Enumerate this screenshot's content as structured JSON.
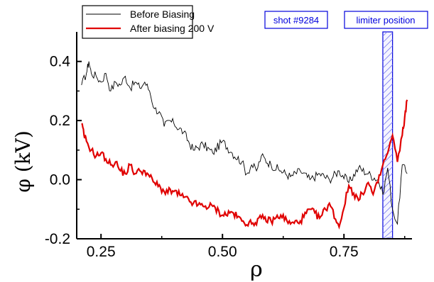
{
  "chart_data": {
    "type": "line",
    "xlabel": "ρ",
    "ylabel": "φ (kV)",
    "xlim": [
      0.2,
      0.89
    ],
    "ylim": [
      -0.2,
      0.5
    ],
    "xticks": [
      0.25,
      0.5,
      0.75
    ],
    "xtick_labels": [
      "0.25",
      "0.50",
      "0.75"
    ],
    "yticks": [
      -0.2,
      0.0,
      0.2,
      0.4
    ],
    "ytick_labels": [
      "-0.2",
      "0.0",
      "0.2",
      "0.4"
    ],
    "grid": false,
    "legend": {
      "placement": "top-left"
    },
    "colors": {
      "before": "#000000",
      "after": "#e00000",
      "annotation": "#0000dd"
    },
    "series": [
      {
        "name": "Before Biasing",
        "x": [
          0.21,
          0.22,
          0.225,
          0.23,
          0.24,
          0.25,
          0.26,
          0.27,
          0.28,
          0.29,
          0.3,
          0.31,
          0.32,
          0.33,
          0.34,
          0.35,
          0.36,
          0.37,
          0.38,
          0.39,
          0.4,
          0.42,
          0.44,
          0.46,
          0.48,
          0.5,
          0.52,
          0.54,
          0.55,
          0.56,
          0.57,
          0.58,
          0.6,
          0.62,
          0.64,
          0.66,
          0.68,
          0.7,
          0.72,
          0.74,
          0.76,
          0.78,
          0.8,
          0.82,
          0.83,
          0.84,
          0.85,
          0.86,
          0.87,
          0.88
        ],
        "y": [
          0.32,
          0.36,
          0.4,
          0.36,
          0.35,
          0.33,
          0.36,
          0.3,
          0.33,
          0.32,
          0.35,
          0.31,
          0.33,
          0.31,
          0.33,
          0.3,
          0.24,
          0.23,
          0.18,
          0.2,
          0.19,
          0.16,
          0.1,
          0.12,
          0.09,
          0.13,
          0.09,
          0.06,
          0.02,
          0.05,
          0.03,
          0.08,
          0.05,
          0.03,
          0.01,
          0.03,
          0.0,
          0.02,
          0.0,
          0.03,
          -0.01,
          0.04,
          0.02,
          0.0,
          -0.05,
          0.04,
          -0.1,
          -0.15,
          0.05,
          0.02
        ]
      },
      {
        "name": "After biasing 200 V",
        "x": [
          0.21,
          0.215,
          0.22,
          0.23,
          0.24,
          0.25,
          0.26,
          0.27,
          0.28,
          0.29,
          0.3,
          0.31,
          0.32,
          0.33,
          0.34,
          0.35,
          0.36,
          0.38,
          0.4,
          0.42,
          0.44,
          0.46,
          0.48,
          0.5,
          0.52,
          0.54,
          0.56,
          0.58,
          0.6,
          0.62,
          0.64,
          0.66,
          0.68,
          0.7,
          0.72,
          0.74,
          0.76,
          0.78,
          0.8,
          0.81,
          0.82,
          0.83,
          0.84,
          0.85,
          0.86,
          0.87,
          0.875,
          0.88
        ],
        "y": [
          0.19,
          0.15,
          0.13,
          0.1,
          0.08,
          0.09,
          0.07,
          0.05,
          0.06,
          0.03,
          0.02,
          0.05,
          0.02,
          0.03,
          0.03,
          0.01,
          -0.01,
          -0.04,
          -0.04,
          -0.06,
          -0.08,
          -0.09,
          -0.09,
          -0.12,
          -0.11,
          -0.14,
          -0.15,
          -0.13,
          -0.14,
          -0.12,
          -0.15,
          -0.14,
          -0.1,
          -0.13,
          -0.08,
          -0.16,
          -0.02,
          -0.07,
          -0.01,
          -0.05,
          -0.01,
          0.05,
          0.09,
          0.15,
          0.06,
          0.15,
          0.21,
          0.27
        ]
      }
    ],
    "annotations": [
      {
        "text": "shot #9284"
      },
      {
        "text": "limiter position",
        "x_range": [
          0.83,
          0.85
        ]
      }
    ]
  }
}
